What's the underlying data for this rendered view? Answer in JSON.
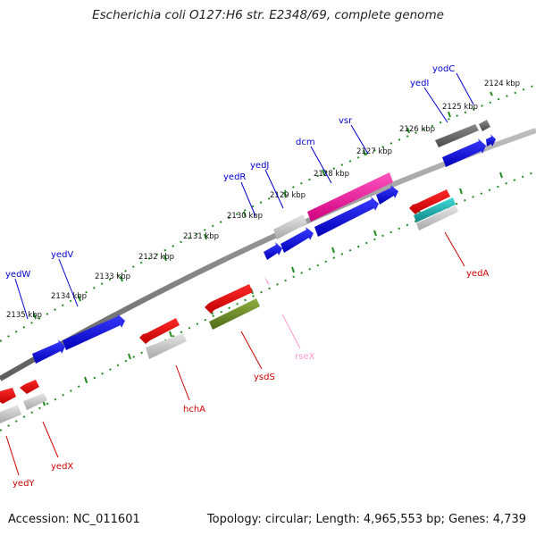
{
  "title": "Escherichia coli O127:H6 str. E2348/69, complete genome",
  "footer": {
    "accession": "Accession: NC_011601",
    "summary": "Topology: circular; Length: 4,965,553 bp; Genes: 4,739"
  },
  "ticks": [
    {
      "label": "2124 kbp"
    },
    {
      "label": "2125 kbp"
    },
    {
      "label": "2126 kbp"
    },
    {
      "label": "2127 kbp"
    },
    {
      "label": "2128 kbp"
    },
    {
      "label": "2129 kbp"
    },
    {
      "label": "2130 kbp"
    },
    {
      "label": "2131 kbp"
    },
    {
      "label": "2132 kbp"
    },
    {
      "label": "2133 kbp"
    },
    {
      "label": "2134 kbp"
    },
    {
      "label": "2135 kbp"
    }
  ],
  "genes": {
    "outer": [
      {
        "name": "yodC",
        "color": "#0000cc"
      },
      {
        "name": "yedI",
        "color": "#0000cc"
      },
      {
        "name": "vsr",
        "color": "#0000cc"
      },
      {
        "name": "dcm",
        "color": "#0000cc"
      },
      {
        "name": "yedJ",
        "color": "#0000cc"
      },
      {
        "name": "yedR",
        "color": "#0000cc"
      },
      {
        "name": "yedV",
        "color": "#0000cc"
      },
      {
        "name": "yedW",
        "color": "#0000cc"
      }
    ],
    "inner": [
      {
        "name": "yedA",
        "color": "#cc0000"
      },
      {
        "name": "rseX",
        "color": "#ff99cc"
      },
      {
        "name": "ysdS",
        "color": "#cc0000"
      },
      {
        "name": "hchA",
        "color": "#cc0000"
      },
      {
        "name": "yedX",
        "color": "#cc0000"
      },
      {
        "name": "yedY",
        "color": "#cc0000"
      }
    ]
  },
  "colors": {
    "forward_cds": "#0000ee",
    "reverse_cds": "#ee0000",
    "gene": "#bbbbbb",
    "gene_dark": "#666666",
    "pseudo_magenta": "#ff1493",
    "olive": "#6b8e23",
    "teal": "#20b2aa",
    "backbone": "#888888",
    "tick_green": "#228b22",
    "ncrna_pink": "#ff99cc"
  }
}
